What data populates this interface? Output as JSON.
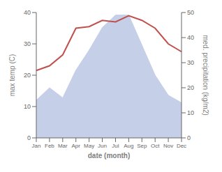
{
  "chart_data": {
    "type": "line",
    "xlabel": "date (month)",
    "ylabel": "max temp (C)",
    "y2label": "med. precipitation (kg/m2)",
    "categories": [
      "Jan",
      "Feb",
      "Mar",
      "Apr",
      "May",
      "Jun",
      "Jul",
      "Aug",
      "Sep",
      "Oct",
      "Nov",
      "Dec"
    ],
    "series": [
      {
        "type": "area",
        "axis": "y2",
        "color": "#c5d0e8",
        "values": [
          15,
          20,
          16,
          27,
          35,
          44,
          49,
          49,
          37,
          25,
          17,
          14
        ]
      },
      {
        "type": "line",
        "color": "#c0504d",
        "values": [
          21.5,
          23.0,
          26.5,
          35.0,
          35.5,
          37.5,
          37.0,
          39.0,
          37.5,
          35.0,
          30.0,
          27.5
        ]
      }
    ],
    "ylim": [
      0,
      40
    ],
    "yticks": [
      0,
      10,
      20,
      30,
      40
    ],
    "y2lim": [
      0,
      50
    ],
    "y2ticks": [
      0,
      10,
      20,
      30,
      40,
      50
    ],
    "grid": false
  }
}
